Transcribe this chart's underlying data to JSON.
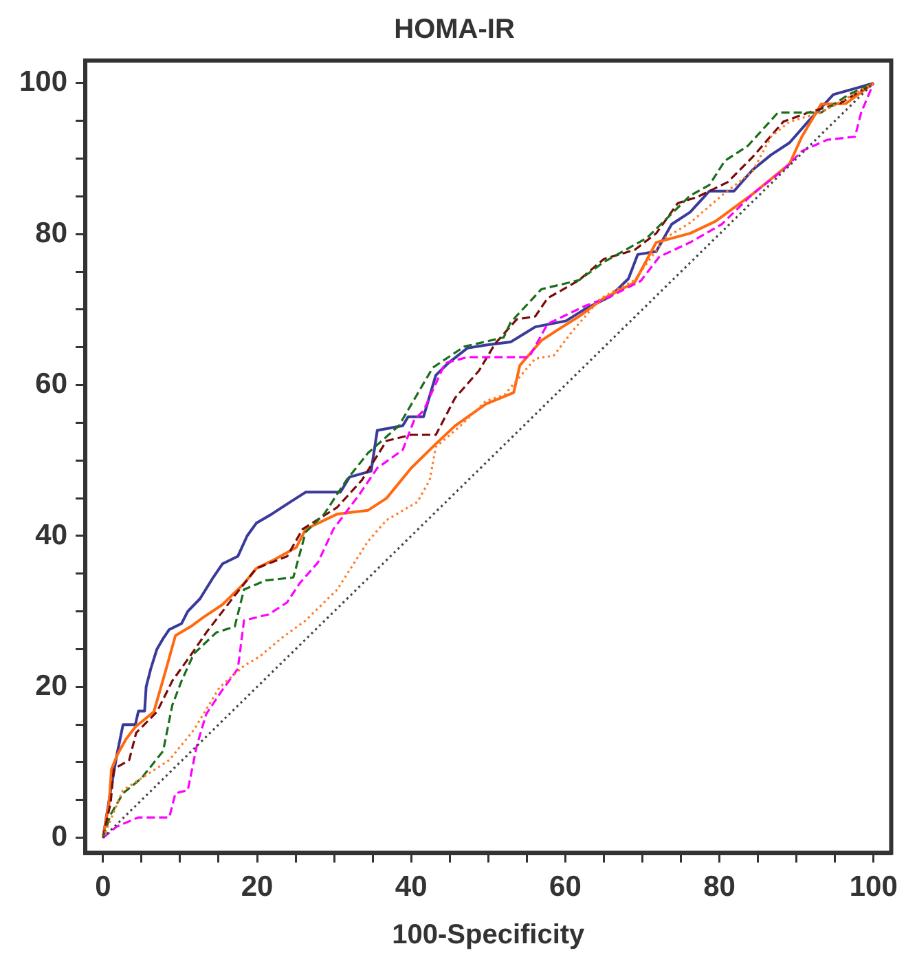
{
  "chart_data": {
    "type": "line",
    "title": "HOMA-IR",
    "xlabel": "100-Specificity",
    "xlim": [
      -2.3,
      102.3
    ],
    "ylim": [
      -2,
      103
    ],
    "xticks": [
      0,
      {
        "value": 5,
        "label": null
      },
      {
        "value": 10,
        "label": null
      },
      {
        "value": 15,
        "label": null
      },
      20,
      {
        "value": 25,
        "label": null
      },
      {
        "value": 30,
        "label": null
      },
      {
        "value": 35,
        "label": null
      },
      40,
      {
        "value": 45,
        "label": null
      },
      {
        "value": 50,
        "label": null
      },
      {
        "value": 55,
        "label": null
      },
      60,
      {
        "value": 65,
        "label": null
      },
      {
        "value": 70,
        "label": null
      },
      {
        "value": 75,
        "label": null
      },
      80,
      {
        "value": 85,
        "label": null
      },
      {
        "value": 90,
        "label": null
      },
      {
        "value": 95,
        "label": null
      },
      100
    ],
    "yticks": [
      0,
      {
        "value": 5,
        "label": null
      },
      {
        "value": 10,
        "label": null
      },
      {
        "value": 15,
        "label": null
      },
      20,
      {
        "value": 25,
        "label": null
      },
      {
        "value": 30,
        "label": null
      },
      {
        "value": 35,
        "label": null
      },
      40,
      {
        "value": 45,
        "label": null
      },
      {
        "value": 50,
        "label": null
      },
      {
        "value": 55,
        "label": null
      },
      60,
      {
        "value": 65,
        "label": null
      },
      {
        "value": 70,
        "label": null
      },
      {
        "value": 75,
        "label": null
      },
      80,
      {
        "value": 85,
        "label": null
      },
      {
        "value": 90,
        "label": null
      },
      {
        "value": 95,
        "label": null
      },
      100
    ],
    "grid": false,
    "legend": false,
    "marker": "none",
    "series": [
      {
        "color": "#444444",
        "line_style": "dotted",
        "x": [
          0,
          100
        ],
        "values": [
          0,
          100
        ]
      },
      {
        "color": "#ff7a20",
        "line_style": "dotted",
        "x": [
          0,
          2.6,
          8.6,
          11.8,
          15.1,
          18.3,
          20.3,
          23.1,
          26.3,
          30.4,
          32.4,
          34.4,
          36.8,
          40.8,
          42.4,
          43.2,
          46.4,
          49.7,
          52.1,
          56.1,
          58.5,
          60.9,
          64.6,
          69,
          73,
          76.2,
          80.3,
          84.3,
          86.7,
          89.1,
          93.2,
          100
        ],
        "values": [
          0,
          6.3,
          10.3,
          14.3,
          19.9,
          22.8,
          24,
          26.4,
          28.8,
          32.9,
          36.1,
          39.3,
          42.1,
          44.5,
          47.4,
          51.8,
          54.6,
          57.9,
          58.7,
          63.5,
          63.9,
          67.1,
          71.5,
          73.9,
          79.5,
          81.5,
          85.1,
          88.3,
          92.9,
          94.9,
          96.1,
          100
        ]
      },
      {
        "color": "#ff00ff",
        "line_style": "dashed",
        "x": [
          0,
          1.8,
          4.6,
          8.6,
          9.4,
          11,
          12.2,
          13.4,
          15.5,
          17.5,
          18.3,
          21.5,
          23.9,
          25.5,
          27.9,
          29.9,
          33.2,
          35.6,
          38.9,
          40.4,
          41.6,
          44.4,
          47.3,
          55.3,
          57.7,
          62.6,
          65.8,
          69.8,
          72.2,
          76.2,
          80.3,
          84.3,
          88.3,
          90.7,
          94,
          97.6,
          98.4,
          100
        ],
        "values": [
          0,
          1.5,
          2.7,
          2.7,
          5.9,
          6.3,
          12.3,
          16.4,
          19.6,
          22.4,
          28.8,
          29.6,
          31.2,
          33.7,
          36.5,
          40.9,
          45.4,
          49,
          51.4,
          55.4,
          56.6,
          62.9,
          63.7,
          63.7,
          68.1,
          70.5,
          71.7,
          73.8,
          77,
          78.9,
          81.3,
          85.3,
          88.5,
          91,
          92.5,
          92.9,
          96.1,
          100
        ]
      },
      {
        "color": "#1a6e1a",
        "line_style": "dashed",
        "x": [
          0,
          1,
          2.6,
          5,
          7.8,
          9,
          10.2,
          11.8,
          14.7,
          17.1,
          18.3,
          21.1,
          24.7,
          26.3,
          28.7,
          31.6,
          34.4,
          38.4,
          42.8,
          46.9,
          52,
          52.9,
          56.9,
          61.8,
          65,
          70.6,
          76.2,
          78.7,
          80.7,
          83.7,
          87.6,
          93.2,
          96.8,
          100
        ],
        "values": [
          0,
          3.1,
          5.9,
          7.9,
          11.5,
          17.6,
          20.8,
          24.4,
          27.2,
          28,
          32.9,
          34.1,
          34.5,
          40.5,
          42.9,
          47.4,
          51,
          54.6,
          62.3,
          65.1,
          66.3,
          68.3,
          72.7,
          73.9,
          76.3,
          79.5,
          85.1,
          86.5,
          89.7,
          91.7,
          96.1,
          96.1,
          98.5,
          100
        ]
      },
      {
        "color": "#7a0a0a",
        "line_style": "dashed",
        "x": [
          0,
          1,
          1.4,
          3.4,
          4.3,
          7,
          9,
          11.8,
          13.4,
          17.1,
          19.9,
          23.9,
          25.9,
          30.4,
          33.6,
          36.8,
          40,
          43.2,
          45.7,
          48.8,
          50.9,
          53.7,
          56.1,
          57.7,
          61.8,
          65,
          69,
          71.8,
          74.6,
          77.1,
          81.1,
          84.3,
          88.3,
          91.5,
          95.6,
          100
        ],
        "values": [
          0,
          4.7,
          9.1,
          10.3,
          13.9,
          16.7,
          20.8,
          24.8,
          27.2,
          32.1,
          35.7,
          37.3,
          40.9,
          43.8,
          47.4,
          52.6,
          53.4,
          53.4,
          58.3,
          61.9,
          65.5,
          68.7,
          69.1,
          71.5,
          73.9,
          76.7,
          77.9,
          80.1,
          84.1,
          84.9,
          86.9,
          90.2,
          94.9,
          96.1,
          97.3,
          100
        ]
      },
      {
        "color": "#ff6a10",
        "line_style": "solid",
        "x": [
          0,
          0.8,
          1.1,
          1.9,
          3,
          4.2,
          6.6,
          8.2,
          9.4,
          11.4,
          13,
          15.5,
          18.3,
          19.9,
          22.3,
          25.1,
          26.3,
          30.4,
          34.4,
          36.8,
          40,
          43.2,
          45.7,
          49.7,
          53.3,
          54.1,
          56.9,
          59.3,
          61.8,
          65,
          69,
          71.8,
          76.2,
          79.5,
          84.3,
          86.7,
          89.1,
          90.7,
          93.2,
          96.4,
          100
        ],
        "values": [
          0,
          4.7,
          9.1,
          11.1,
          13.1,
          14.7,
          16.7,
          22.4,
          26.8,
          28,
          29.2,
          30.9,
          33.7,
          35.7,
          36.9,
          38.5,
          40.9,
          42.9,
          43.4,
          45,
          49,
          52.2,
          54.6,
          57.5,
          59,
          62.6,
          65.9,
          67.5,
          69.1,
          71.5,
          73.6,
          78.9,
          80.1,
          81.7,
          85.3,
          87.3,
          89.3,
          92.9,
          97.2,
          97.3,
          100
        ]
      },
      {
        "color": "#3a3a9a",
        "line_style": "solid",
        "x": [
          0,
          1,
          1.8,
          2.6,
          4.2,
          4.6,
          5.4,
          5.6,
          6.2,
          7,
          7.8,
          8.6,
          10.2,
          11,
          12.6,
          14.3,
          15.5,
          17.5,
          18.7,
          19.9,
          21.9,
          24.3,
          26.3,
          30.8,
          32,
          34.8,
          35.6,
          38.9,
          39.6,
          41.6,
          43.2,
          44.8,
          47.3,
          49.7,
          52.9,
          56.1,
          60.1,
          62.6,
          65.8,
          68.2,
          69.4,
          71.8,
          73.8,
          76.2,
          78.7,
          81.9,
          84.3,
          86.7,
          89.1,
          91.5,
          94.8,
          97.6,
          100
        ],
        "values": [
          0,
          6.3,
          11,
          15,
          15,
          16.8,
          16.8,
          20,
          22.4,
          25,
          26.4,
          27.6,
          28.4,
          30,
          31.7,
          34.5,
          36.3,
          37.3,
          40,
          41.7,
          42.9,
          44.5,
          45.8,
          45.8,
          47.8,
          48.6,
          54,
          54.6,
          55.8,
          55.8,
          61.3,
          62.9,
          64.9,
          65.3,
          65.7,
          67.7,
          68.5,
          70.1,
          71.7,
          74.1,
          77.3,
          77.7,
          81.3,
          82.9,
          85.7,
          85.7,
          88.5,
          90.5,
          92.1,
          94.9,
          98.5,
          99.3,
          100
        ]
      }
    ]
  }
}
